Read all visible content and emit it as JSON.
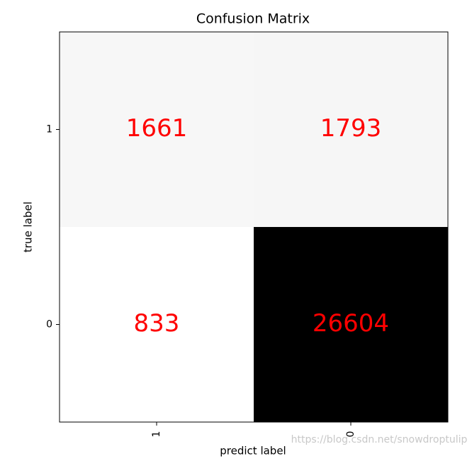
{
  "chart_data": {
    "type": "heatmap",
    "title": "Confusion Matrix",
    "x_label": "predict label",
    "y_label": "true label",
    "x_categories": [
      "1",
      "0"
    ],
    "y_categories": [
      "1",
      "0"
    ],
    "values": [
      [
        1661,
        1793
      ],
      [
        833,
        26604
      ]
    ],
    "colormap": "Greys",
    "text_color": "#ff0000",
    "watermark": "https://blog.csdn.net/snowdroptulip"
  }
}
